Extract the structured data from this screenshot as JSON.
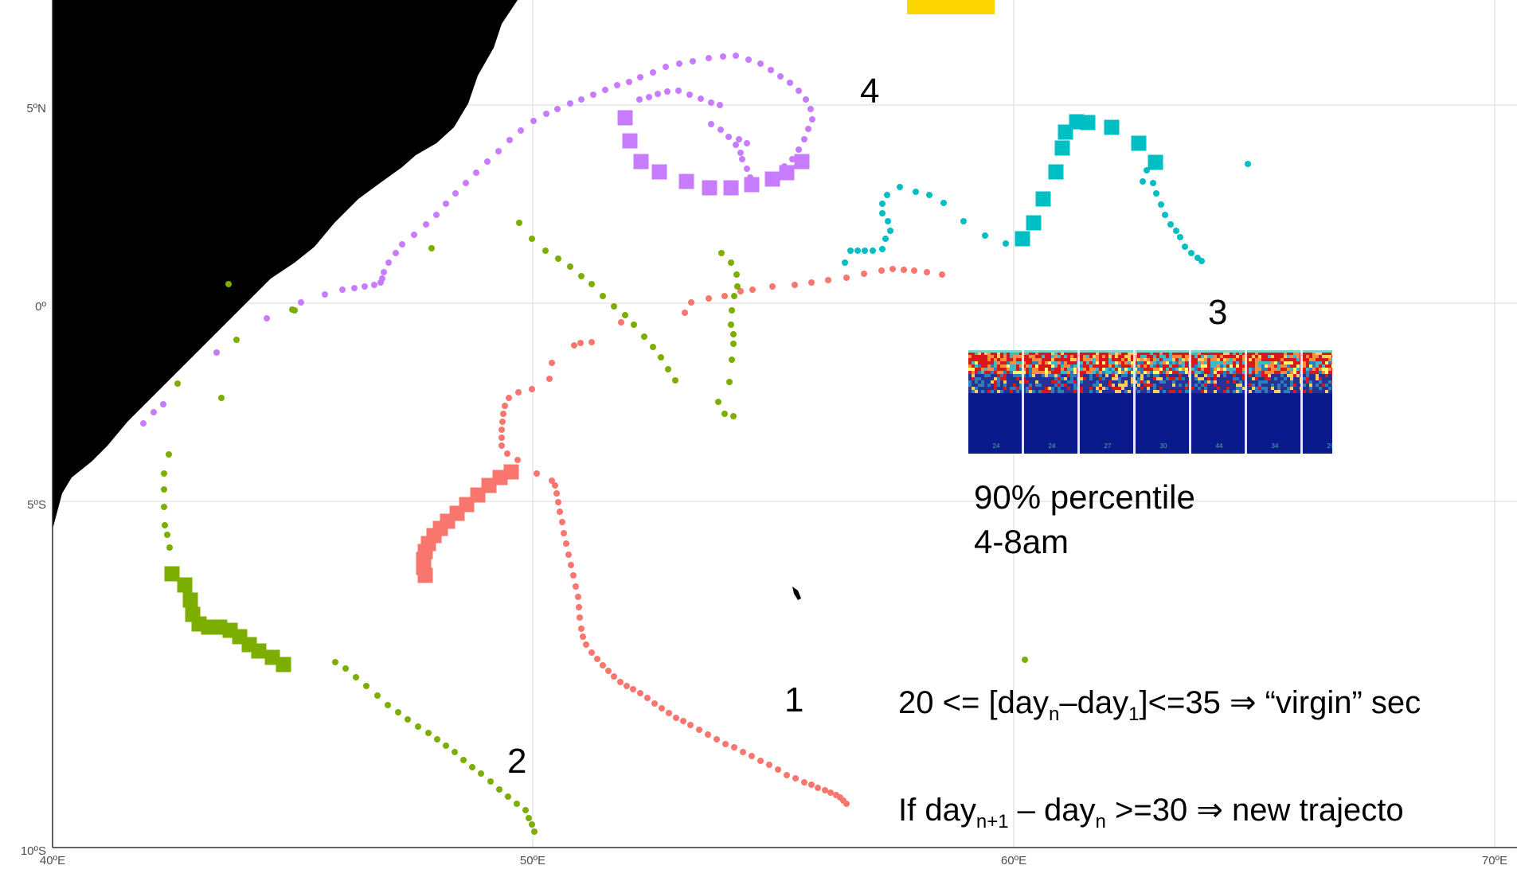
{
  "map": {
    "tick_labels": {
      "y": [
        "5ºN",
        "0º",
        "5ºS",
        "10ºS"
      ],
      "x": [
        "40ºE",
        "50ºE",
        "60ºE",
        "70ºE"
      ]
    },
    "lat_range": [
      -10,
      7.5
    ],
    "lon_range": [
      40,
      70.3
    ]
  },
  "colors": {
    "trajectory_1": "#F8766D",
    "trajectory_2": "#7CAE00",
    "trajectory_3": "#00BFC4",
    "trajectory_4": "#C77CFF",
    "land": "#000000",
    "highlight_tag": "#FFD700"
  },
  "labels": {
    "t1": "1",
    "t2": "2",
    "t3": "3",
    "t4": "4"
  },
  "inset": {
    "caption_line1": "90% percentile",
    "caption_line2": "4-8am",
    "tick_labels": [
      "24",
      "24",
      "27",
      "30",
      "44",
      "34",
      "29"
    ]
  },
  "formula1": {
    "part_a": "20 <= [day",
    "sub_n": "n",
    "part_b": "–day",
    "sub_1": "1",
    "part_c": "]<=35 ",
    "arrow": "⇒",
    "part_d": " “virgin” sec"
  },
  "formula2": {
    "part_a": "If day",
    "sub_n1": "n+1",
    "part_b": " – day",
    "sub_n": "n",
    "part_c": " >=30 ",
    "arrow": "⇒",
    "part_d": " new trajecto"
  }
}
